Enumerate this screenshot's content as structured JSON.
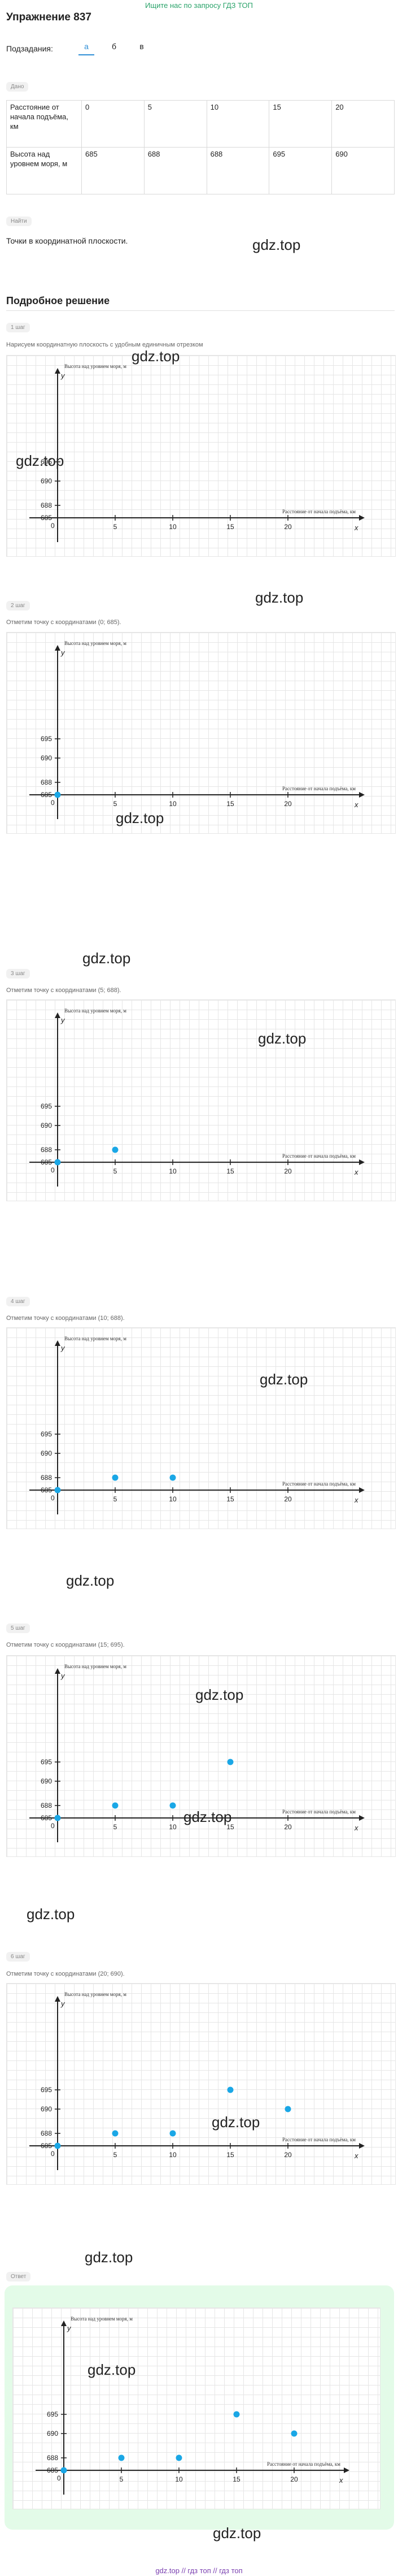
{
  "header": {
    "top_link": "Ищите нас по запросу ГДЗ ТОП",
    "title": "Упражнение 837",
    "subtasks_label": "Подзадания:",
    "tabs": [
      "а",
      "б",
      "в"
    ],
    "active_tab": 0
  },
  "given": {
    "badge": "Дано",
    "row1_header": "Расстояние от начала подъёма, км",
    "row1_values": [
      "0",
      "5",
      "10",
      "15",
      "20"
    ],
    "row2_header": "Высота над уровнем моря, м",
    "row2_values": [
      "685",
      "688",
      "688",
      "695",
      "690"
    ]
  },
  "find": {
    "badge": "Найти",
    "text": "Точки в координатной плоскости."
  },
  "solution": {
    "heading": "Подробное решение",
    "steps": [
      {
        "label": "1 шаг",
        "text": "Нарисуем координатную плоскость с удобным единичным отрезком"
      },
      {
        "label": "2 шаг",
        "text": "Отметим точку с координатами (0; 685)."
      },
      {
        "label": "3 шаг",
        "text": "Отметим точку с координатами (5; 688)."
      },
      {
        "label": "4 шаг",
        "text": "Отметим точку с координатами (10; 688)."
      },
      {
        "label": "5 шаг",
        "text": "Отметим точку с координатами (15; 695)."
      },
      {
        "label": "6 шаг",
        "text": "Отметим точку с координатами (20; 690)."
      }
    ],
    "answer_label": "Ответ"
  },
  "watermark": "gdz.top",
  "footer": "gdz.top // гдз топ // гдз топ",
  "colors": {
    "accent": "#2f8fd6",
    "point": "#1aa7e6",
    "answer_bg": "#e3fbe8",
    "top_link": "#2aa36a",
    "footer": "#7a3fb0"
  },
  "chart_data": {
    "type": "scatter",
    "title": "",
    "xlabel": "Расстояние от начала подъёма, км",
    "ylabel": "Высота над уровнем моря, м",
    "x_axis_letter": "x",
    "y_axis_letter": "y",
    "origin_label": "0",
    "x_ticks": [
      "5",
      "10",
      "15",
      "20"
    ],
    "y_ticks": [
      "685",
      "688",
      "690",
      "695"
    ],
    "points": [
      {
        "x": 0,
        "y": 685
      },
      {
        "x": 5,
        "y": 688
      },
      {
        "x": 10,
        "y": 688
      },
      {
        "x": 15,
        "y": 695
      },
      {
        "x": 20,
        "y": 690
      }
    ],
    "points_shown_per_chart": [
      0,
      1,
      2,
      3,
      4,
      5,
      5
    ],
    "grid": true
  }
}
